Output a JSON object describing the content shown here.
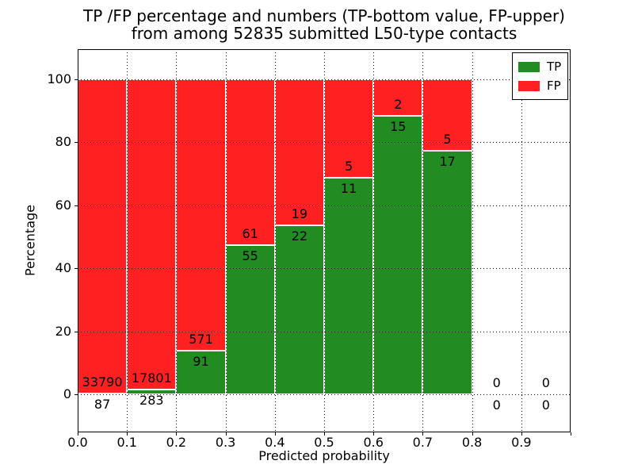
{
  "title": {
    "line1": "TP /FP percentage and numbers (TP-bottom value, FP-upper)",
    "line2": "from among 52835 submitted L50-type contacts"
  },
  "colors": {
    "tp_green": "#228b22",
    "fp_red": "#ff2121",
    "background": "#ffffff",
    "text": "#000000"
  },
  "chart_data": {
    "type": "bar",
    "stacked": true,
    "orientation": "vertical",
    "title": "TP /FP percentage and numbers (TP-bottom value, FP-upper) from among 52835 submitted L50-type contacts",
    "xlabel": "Predicted probability",
    "ylabel": "Percentage",
    "xlim": [
      0.0,
      1.0
    ],
    "ylim": [
      -12,
      110
    ],
    "xticks": [
      "0.0",
      "0.1",
      "0.2",
      "0.3",
      "0.4",
      "0.5",
      "0.6",
      "0.7",
      "0.8",
      "0.9"
    ],
    "yticks": [
      0,
      20,
      40,
      60,
      80,
      100
    ],
    "grid": "dotted, both axes, drawn above bars",
    "bar_width": 0.1,
    "bar_edge_color": "#ffffff",
    "legend_position": "upper right",
    "total_submitted": 52835,
    "legend": [
      {
        "label": "TP",
        "color": "#228b22"
      },
      {
        "label": "FP",
        "color": "#ff2121"
      }
    ],
    "series": [
      {
        "name": "TP",
        "color": "#228b22",
        "values": [
          87,
          283,
          91,
          55,
          22,
          11,
          15,
          17,
          0,
          0
        ]
      },
      {
        "name": "FP",
        "color": "#ff2121",
        "values": [
          33790,
          17801,
          571,
          61,
          19,
          5,
          2,
          5,
          0,
          0
        ]
      }
    ],
    "bins": [
      {
        "x0": 0.0,
        "x1": 0.1,
        "tp": 87,
        "fp": 33790,
        "tp_pct": 0.26,
        "fp_pct": 99.74
      },
      {
        "x0": 0.1,
        "x1": 0.2,
        "tp": 283,
        "fp": 17801,
        "tp_pct": 1.56,
        "fp_pct": 98.44
      },
      {
        "x0": 0.2,
        "x1": 0.3,
        "tp": 91,
        "fp": 571,
        "tp_pct": 13.75,
        "fp_pct": 86.25
      },
      {
        "x0": 0.3,
        "x1": 0.4,
        "tp": 55,
        "fp": 61,
        "tp_pct": 47.41,
        "fp_pct": 52.59
      },
      {
        "x0": 0.4,
        "x1": 0.5,
        "tp": 22,
        "fp": 19,
        "tp_pct": 53.66,
        "fp_pct": 46.34
      },
      {
        "x0": 0.5,
        "x1": 0.6,
        "tp": 11,
        "fp": 5,
        "tp_pct": 68.75,
        "fp_pct": 31.25
      },
      {
        "x0": 0.6,
        "x1": 0.7,
        "tp": 15,
        "fp": 2,
        "tp_pct": 88.24,
        "fp_pct": 11.76
      },
      {
        "x0": 0.7,
        "x1": 0.8,
        "tp": 17,
        "fp": 5,
        "tp_pct": 77.27,
        "fp_pct": 22.73
      },
      {
        "x0": 0.8,
        "x1": 0.9,
        "tp": 0,
        "fp": 0,
        "tp_pct": 0,
        "fp_pct": 0
      },
      {
        "x0": 0.9,
        "x1": 1.0,
        "tp": 0,
        "fp": 0,
        "tp_pct": 0,
        "fp_pct": 0
      }
    ]
  }
}
